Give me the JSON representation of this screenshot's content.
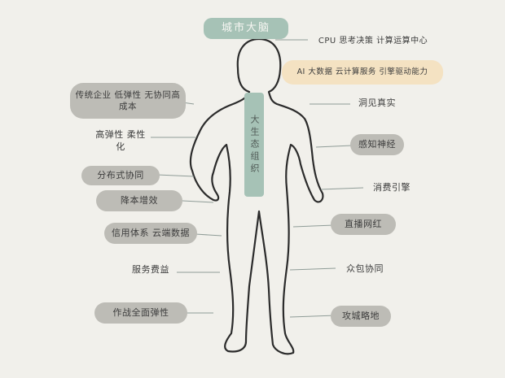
{
  "title": "城市大脑",
  "spine_label": "大生态组织",
  "left_items": [
    "传统企业 低弹性 无协同高成本",
    "高弹性 柔性化",
    "分布式协同",
    "降本增效",
    "信用体系 云端数据",
    "服务费益",
    "作战全面弹性"
  ],
  "right_items": [
    "CPU 思考决策 计算运算中心",
    "AI 大数据 云计算服务 引擎驱动能力",
    "洞见真实",
    "感知神经",
    "消费引擎",
    "直播网红",
    "众包协同",
    "攻城略地"
  ],
  "colors": {
    "background": "#f1f0eb",
    "title_green": "#a6c2b6",
    "gray_pill": "#bdbcb6",
    "yellow_pill": "#f4e2c2",
    "body_outline": "#2b2b2b",
    "connector": "#8f9c97"
  }
}
